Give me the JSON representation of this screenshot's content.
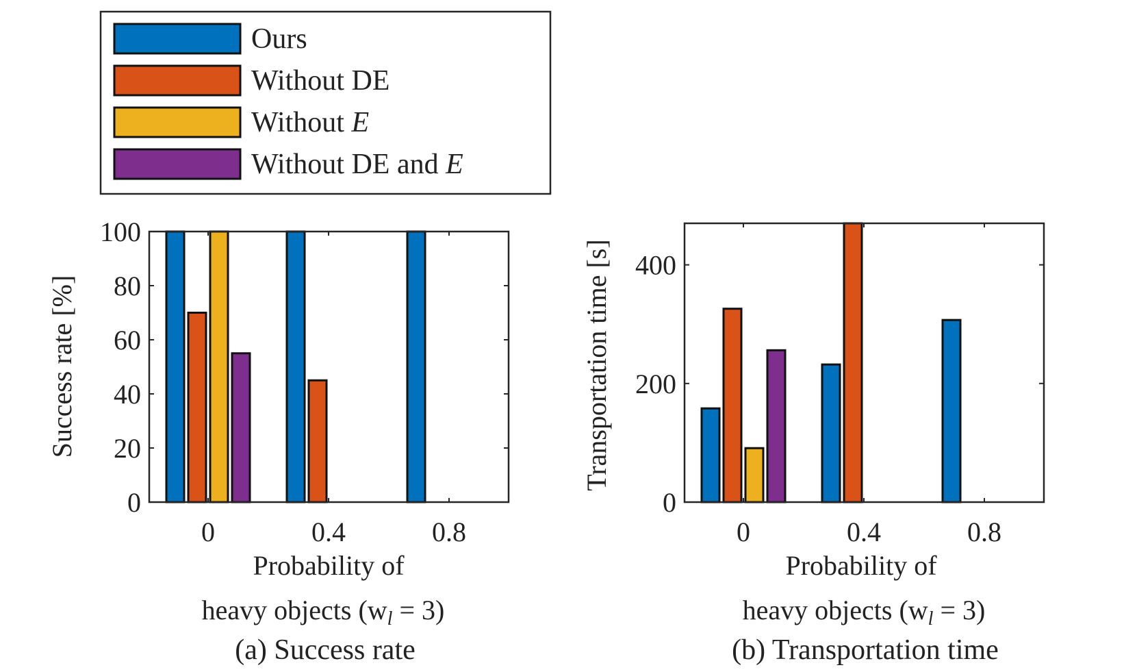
{
  "legend": {
    "entries": [
      {
        "prefix": "Ours",
        "italic": "",
        "suffix": "",
        "color": "#0072BD"
      },
      {
        "prefix": "Without DE",
        "italic": "",
        "suffix": "",
        "color": "#D95319"
      },
      {
        "prefix": "Without ",
        "italic": "E",
        "suffix": "",
        "color": "#EDB120"
      },
      {
        "prefix": "Without DE and ",
        "italic": "E",
        "suffix": "",
        "color": "#7E2F8E"
      }
    ]
  },
  "chart_data": [
    {
      "type": "bar",
      "title": "",
      "caption": "(a) Success rate",
      "xlabel_lines": [
        "Probability of",
        "heavy objects (w",
        "l",
        " = 3)"
      ],
      "ylabel": "Success rate [%]",
      "categories": [
        "0",
        "0.4",
        "0.8"
      ],
      "ylim": [
        0,
        100
      ],
      "yticks": [
        0,
        20,
        40,
        60,
        80,
        100
      ],
      "series": [
        {
          "name": "Ours",
          "values": [
            100,
            100,
            100
          ]
        },
        {
          "name": "Without DE",
          "values": [
            70,
            45,
            0
          ]
        },
        {
          "name": "Without E",
          "values": [
            100,
            0,
            0
          ]
        },
        {
          "name": "Without DE and E",
          "values": [
            55,
            0,
            0
          ]
        }
      ]
    },
    {
      "type": "bar",
      "title": "",
      "caption": "(b) Transportation time",
      "xlabel_lines": [
        "Probability of",
        "heavy objects (w",
        "l",
        " = 3)"
      ],
      "ylabel": "Transportation time [s]",
      "categories": [
        "0",
        "0.4",
        "0.8"
      ],
      "ylim": [
        0,
        470
      ],
      "yticks": [
        0,
        200,
        400
      ],
      "series": [
        {
          "name": "Ours",
          "values": [
            158,
            232,
            307
          ]
        },
        {
          "name": "Without DE",
          "values": [
            326,
            470,
            0
          ]
        },
        {
          "name": "Without E",
          "values": [
            91,
            0,
            0
          ]
        },
        {
          "name": "Without DE and E",
          "values": [
            256,
            0,
            0
          ]
        }
      ]
    }
  ]
}
